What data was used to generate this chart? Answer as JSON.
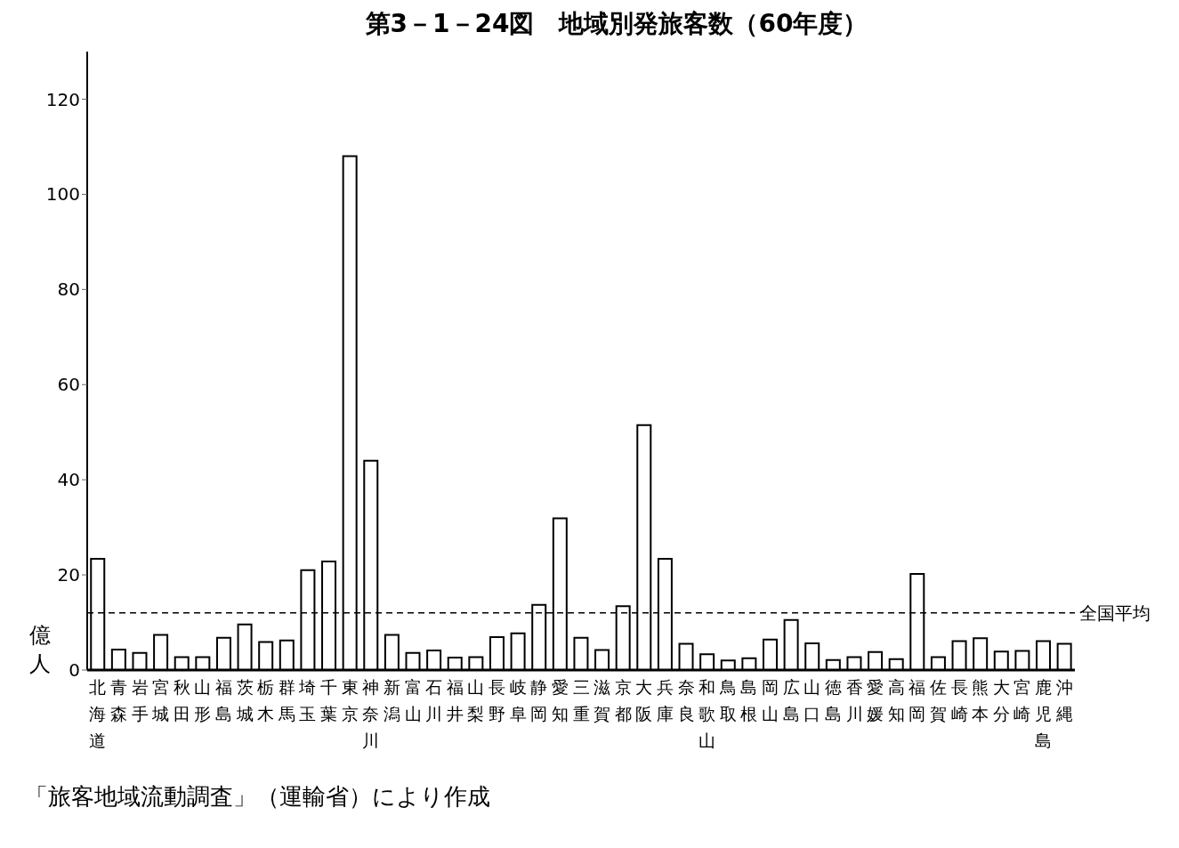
{
  "chart_data": {
    "type": "bar",
    "title": "第3－1－24図　地域別発旅客数（60年度）",
    "ylabel": "億人",
    "categories": [
      "北海道",
      "青森",
      "岩手",
      "宮城",
      "秋田",
      "山形",
      "福島",
      "茨城",
      "栃木",
      "群馬",
      "埼玉",
      "千葉",
      "東京",
      "神奈川",
      "新潟",
      "富山",
      "石川",
      "福井",
      "山梨",
      "長野",
      "岐阜",
      "静岡",
      "愛知",
      "三重",
      "滋賀",
      "京都",
      "大阪",
      "兵庫",
      "奈良",
      "和歌山",
      "鳥取",
      "島根",
      "岡山",
      "広島",
      "山口",
      "徳島",
      "香川",
      "愛媛",
      "高知",
      "福岡",
      "佐賀",
      "長崎",
      "熊本",
      "大分",
      "宮崎",
      "鹿児島",
      "沖縄"
    ],
    "values": [
      23.4,
      4.3,
      3.6,
      7.4,
      2.7,
      2.7,
      6.8,
      9.6,
      5.9,
      6.2,
      21,
      22.8,
      108,
      44,
      7.4,
      3.6,
      4.1,
      2.6,
      2.7,
      6.9,
      7.7,
      13.7,
      31.9,
      6.8,
      4.2,
      13.4,
      51.5,
      23.4,
      5.5,
      3.3,
      2,
      2.5,
      6.4,
      10.5,
      5.6,
      2.1,
      2.7,
      3.8,
      2.3,
      20.2,
      2.7,
      6.1,
      6.7,
      3.9,
      4,
      6.1,
      5.5
    ],
    "color": "#ffffff",
    "ylim": [
      0,
      130
    ],
    "yticks": [
      0,
      20,
      40,
      60,
      80,
      100,
      120
    ],
    "grid": false,
    "legend": false,
    "ref_lines": [
      {
        "axis": "y",
        "value": 12,
        "label": "全国平均",
        "line_style": "dashed",
        "color": "#000000"
      }
    ],
    "annotations": [
      "「旅客地域流動調査」（運輸省）により作成"
    ]
  }
}
